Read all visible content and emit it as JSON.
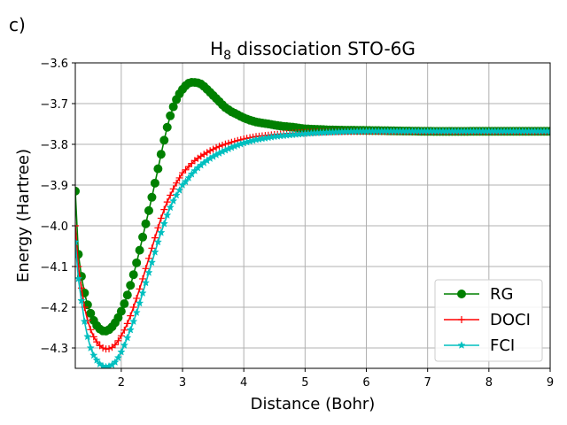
{
  "panel_label": "c)",
  "chart_data": {
    "type": "line",
    "title": "H8 dissociation STO-6G",
    "title_main": "H",
    "title_sub": "8",
    "title_rest": " dissociation STO-6G",
    "xlabel": "Distance (Bohr)",
    "ylabel": "Energy (Hartree)",
    "xlim": [
      1.25,
      9.0
    ],
    "ylim": [
      -4.35,
      -3.6
    ],
    "xticks": [
      2,
      3,
      4,
      5,
      6,
      7,
      8,
      9
    ],
    "xtick_labels": [
      "2",
      "3",
      "4",
      "5",
      "6",
      "7",
      "8",
      "9"
    ],
    "yticks": [
      -3.6,
      -3.7,
      -3.8,
      -3.9,
      -4.0,
      -4.1,
      -4.2,
      -4.3
    ],
    "ytick_labels": [
      "−3.6",
      "−3.7",
      "−3.8",
      "−3.9",
      "−4.0",
      "−4.1",
      "−4.2",
      "−4.3"
    ],
    "grid": true,
    "legend_position": "bottom-right",
    "series": [
      {
        "name": "RG",
        "color": "#008000",
        "marker": "circle",
        "x": [
          1.25,
          1.3,
          1.4,
          1.5,
          1.6,
          1.7,
          1.8,
          1.9,
          2.0,
          2.1,
          2.2,
          2.3,
          2.4,
          2.5,
          2.6,
          2.7,
          2.8,
          2.9,
          3.0,
          3.1,
          3.2,
          3.3,
          3.4,
          3.5,
          3.6,
          3.7,
          3.8,
          4.0,
          4.2,
          4.4,
          4.6,
          4.8,
          5.0,
          5.5,
          6.0,
          7.0,
          8.0,
          9.0
        ],
        "y": [
          -3.915,
          -4.07,
          -4.165,
          -4.215,
          -4.245,
          -4.258,
          -4.255,
          -4.238,
          -4.21,
          -4.17,
          -4.12,
          -4.06,
          -3.995,
          -3.93,
          -3.86,
          -3.79,
          -3.73,
          -3.69,
          -3.665,
          -3.65,
          -3.648,
          -3.652,
          -3.665,
          -3.68,
          -3.695,
          -3.71,
          -3.72,
          -3.735,
          -3.745,
          -3.75,
          -3.755,
          -3.758,
          -3.762,
          -3.765,
          -3.766,
          -3.768,
          -3.768,
          -3.768
        ]
      },
      {
        "name": "DOCI",
        "color": "#ff0000",
        "marker": "plus",
        "x": [
          1.25,
          1.3,
          1.4,
          1.5,
          1.6,
          1.7,
          1.8,
          1.9,
          2.0,
          2.1,
          2.2,
          2.3,
          2.4,
          2.5,
          2.6,
          2.7,
          2.8,
          2.9,
          3.0,
          3.2,
          3.4,
          3.6,
          3.8,
          4.0,
          4.2,
          4.5,
          5.0,
          5.5,
          6.0,
          7.0,
          8.0,
          9.0
        ],
        "y": [
          -4.0,
          -4.1,
          -4.2,
          -4.255,
          -4.285,
          -4.3,
          -4.302,
          -4.292,
          -4.27,
          -4.24,
          -4.2,
          -4.155,
          -4.105,
          -4.055,
          -4.005,
          -3.96,
          -3.925,
          -3.895,
          -3.87,
          -3.84,
          -3.82,
          -3.805,
          -3.795,
          -3.787,
          -3.781,
          -3.776,
          -3.771,
          -3.769,
          -3.768,
          -3.768,
          -3.768,
          -3.768
        ]
      },
      {
        "name": "FCI",
        "color": "#00bfbf",
        "marker": "star",
        "x": [
          1.25,
          1.3,
          1.4,
          1.5,
          1.6,
          1.7,
          1.8,
          1.9,
          2.0,
          2.1,
          2.2,
          2.3,
          2.4,
          2.5,
          2.6,
          2.7,
          2.8,
          2.9,
          3.0,
          3.2,
          3.4,
          3.6,
          3.8,
          4.0,
          4.2,
          4.5,
          5.0,
          5.5,
          6.0,
          7.0,
          8.0,
          9.0
        ],
        "y": [
          -4.04,
          -4.13,
          -4.235,
          -4.3,
          -4.33,
          -4.345,
          -4.345,
          -4.335,
          -4.31,
          -4.275,
          -4.235,
          -4.19,
          -4.14,
          -4.09,
          -4.04,
          -3.995,
          -3.955,
          -3.925,
          -3.9,
          -3.865,
          -3.84,
          -3.822,
          -3.808,
          -3.797,
          -3.789,
          -3.781,
          -3.774,
          -3.77,
          -3.768,
          -3.768,
          -3.768,
          -3.768
        ]
      }
    ]
  }
}
